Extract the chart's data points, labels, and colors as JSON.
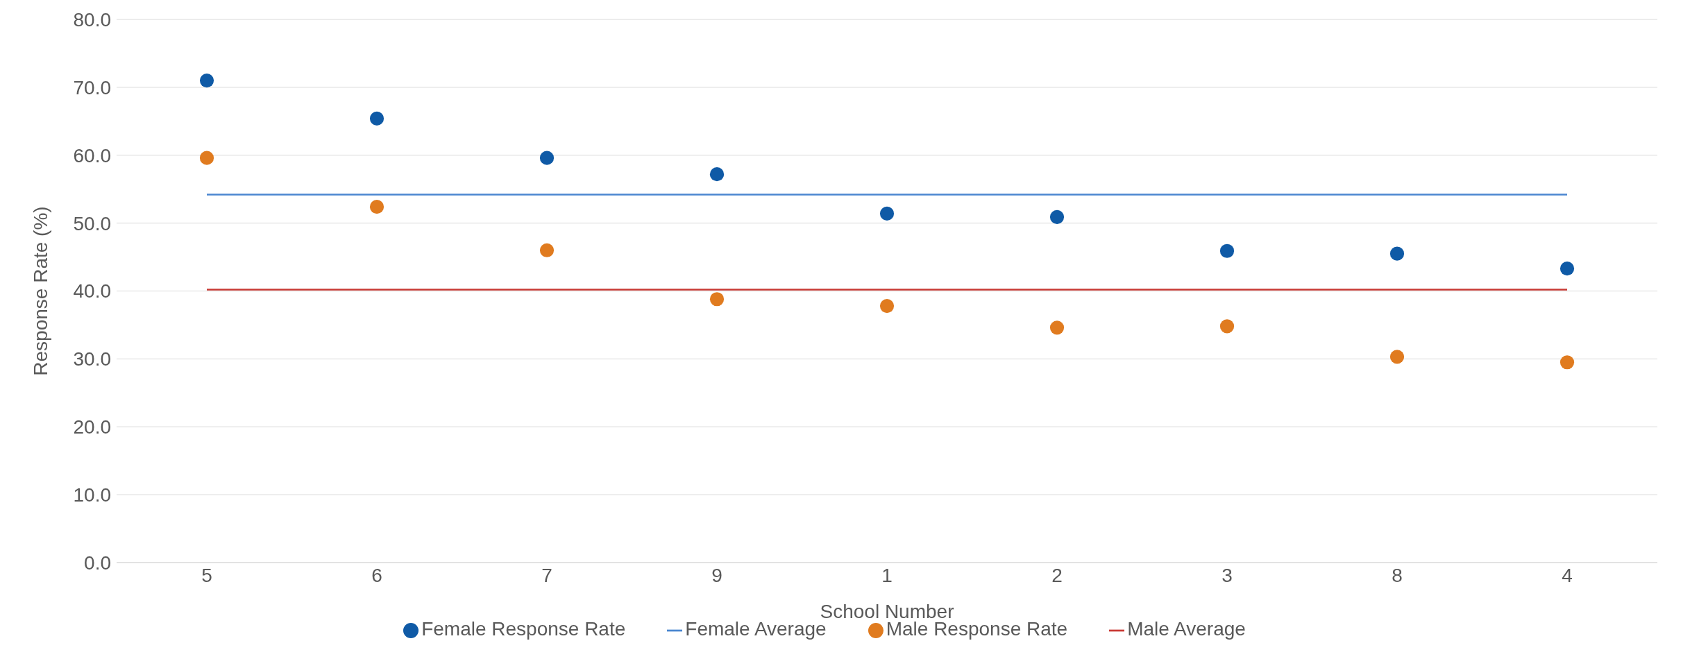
{
  "chart_data": {
    "type": "scatter",
    "xlabel": "School Number",
    "ylabel": "Response Rate (%)",
    "categories": [
      "5",
      "6",
      "7",
      "9",
      "1",
      "2",
      "3",
      "8",
      "4"
    ],
    "series": [
      {
        "name": "Female Response Rate",
        "marker": "circle",
        "color": "#0f5aa6",
        "values": [
          71.0,
          65.4,
          59.6,
          57.2,
          51.4,
          50.9,
          45.9,
          45.5,
          43.3
        ]
      },
      {
        "name": "Female Average",
        "type": "line",
        "color": "#4a86d0",
        "values": [
          54.2,
          54.2,
          54.2,
          54.2,
          54.2,
          54.2,
          54.2,
          54.2,
          54.2
        ]
      },
      {
        "name": "Male Response Rate",
        "marker": "circle",
        "color": "#e07b1f",
        "values": [
          59.6,
          52.4,
          46.0,
          38.8,
          37.8,
          34.6,
          34.8,
          30.3,
          29.5
        ]
      },
      {
        "name": "Male Average",
        "type": "line",
        "color": "#c93a35",
        "values": [
          40.2,
          40.2,
          40.2,
          40.2,
          40.2,
          40.2,
          40.2,
          40.2,
          40.2
        ]
      }
    ],
    "ylim": [
      0,
      80
    ],
    "yticks": [
      {
        "value": 0,
        "label": "0.0"
      },
      {
        "value": 10,
        "label": "10.0"
      },
      {
        "value": 20,
        "label": "20.0"
      },
      {
        "value": 30,
        "label": "30.0"
      },
      {
        "value": 40,
        "label": "40.0"
      },
      {
        "value": 50,
        "label": "50.0"
      },
      {
        "value": 60,
        "label": "60.0"
      },
      {
        "value": 70,
        "label": "70.0"
      },
      {
        "value": 80,
        "label": "80.0"
      }
    ],
    "grid": "y",
    "legend": "bottom",
    "line_style": "solid"
  }
}
